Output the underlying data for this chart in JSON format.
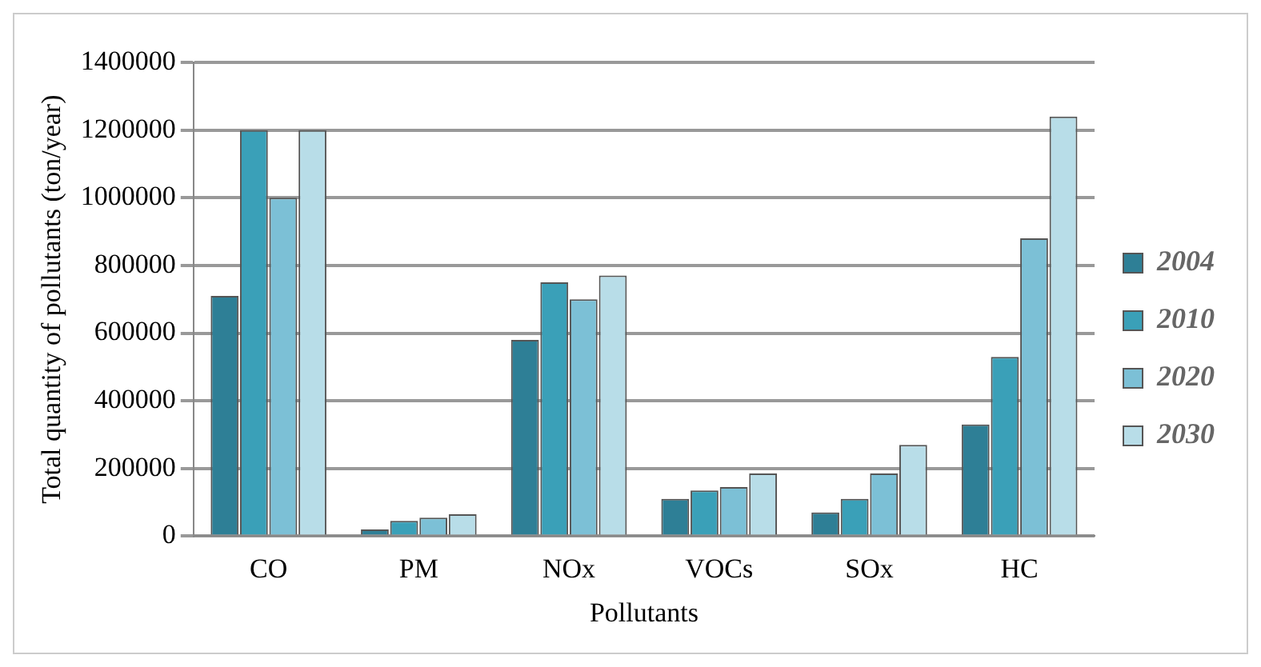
{
  "chart_data": {
    "type": "bar",
    "xlabel": "Pollutants",
    "ylabel": "Total quantity of pollutants (ton/year)",
    "categories": [
      "CO",
      "PM",
      "NOx",
      "VOCs",
      "SOx",
      "HC"
    ],
    "series": [
      {
        "name": "2004",
        "color": "#2e7f96",
        "values": [
          710000,
          20000,
          580000,
          110000,
          70000,
          330000
        ]
      },
      {
        "name": "2010",
        "color": "#3aa0b8",
        "values": [
          1200000,
          45000,
          750000,
          135000,
          110000,
          530000
        ]
      },
      {
        "name": "2020",
        "color": "#7cc0d6",
        "values": [
          1000000,
          55000,
          700000,
          145000,
          185000,
          880000
        ]
      },
      {
        "name": "2030",
        "color": "#b8dde8",
        "values": [
          1200000,
          65000,
          770000,
          185000,
          270000,
          1240000
        ]
      }
    ],
    "ylim": [
      0,
      1400000
    ],
    "yticks": [
      0,
      200000,
      400000,
      600000,
      800000,
      1000000,
      1200000,
      1400000
    ],
    "grid": "y",
    "legend": "right"
  }
}
